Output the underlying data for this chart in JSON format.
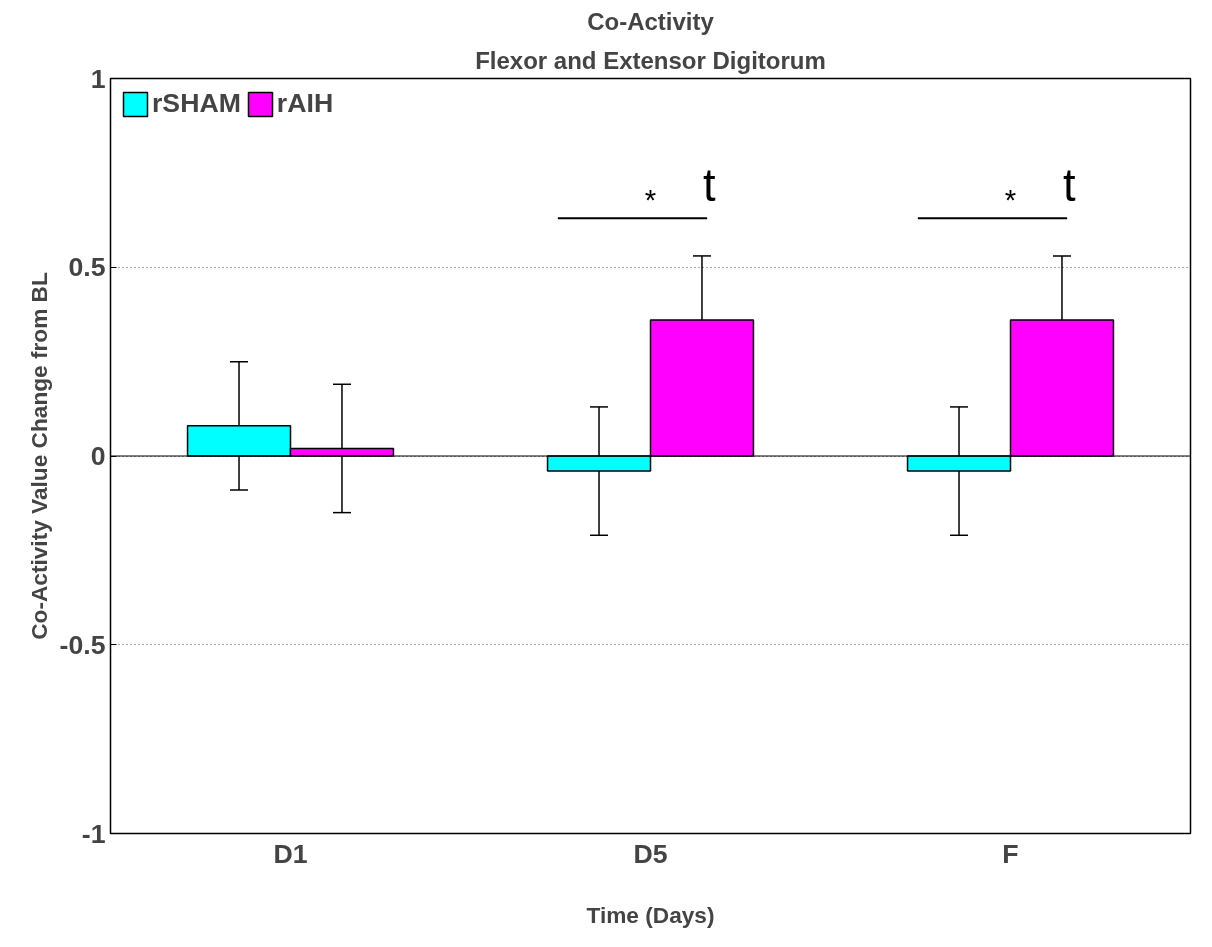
{
  "chart_data": {
    "type": "bar",
    "title": "Co-Activity",
    "subtitle": "Flexor and Extensor Digitorum",
    "xlabel": "Time (Days)",
    "ylabel": "Co-Activity Value Change from BL",
    "categories": [
      "D1",
      "D5",
      "F"
    ],
    "series": [
      {
        "name": "rSHAM",
        "color": "#00ffff",
        "values": [
          0.08,
          -0.04,
          -0.04
        ],
        "errors": [
          0.17,
          0.17,
          0.17
        ]
      },
      {
        "name": "rAIH",
        "color": "#ff00ff",
        "values": [
          0.02,
          0.36,
          0.36
        ],
        "errors": [
          0.17,
          0.17,
          0.17
        ]
      }
    ],
    "annotations": [
      "*",
      "t",
      "*",
      "t"
    ],
    "ylim": [
      -1,
      1
    ],
    "yticks": [
      -1,
      -0.5,
      0,
      0.5,
      1
    ],
    "grid": "y",
    "legend": "top left"
  }
}
